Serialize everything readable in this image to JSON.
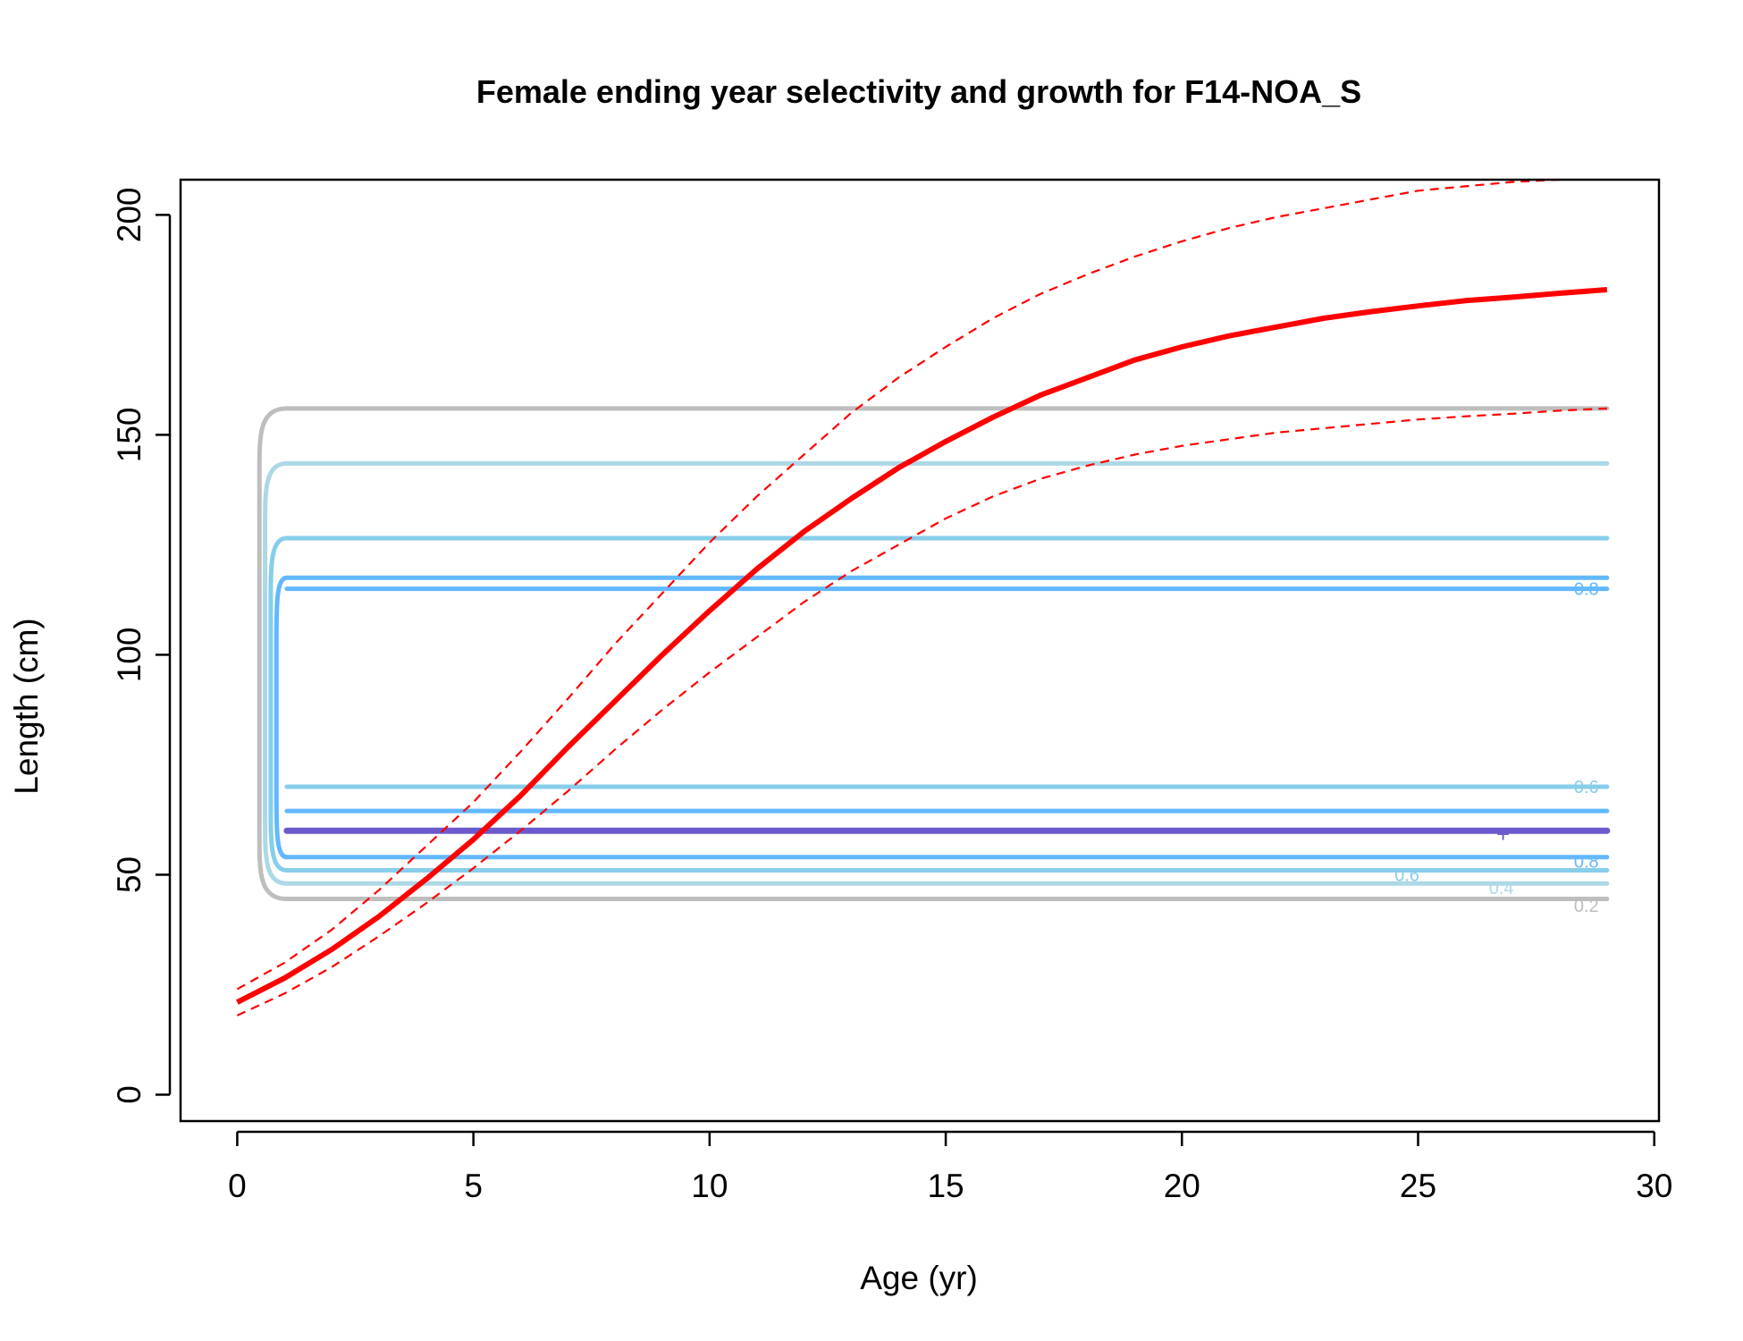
{
  "chart_data": {
    "type": "line",
    "title": "Female ending year selectivity and growth for F14-NOA_S",
    "xlabel": "Age (yr)",
    "ylabel": "Length (cm)",
    "xlim": [
      -1.2,
      30.1
    ],
    "ylim": [
      -6,
      208
    ],
    "x_ticks": [
      0,
      5,
      10,
      15,
      20,
      25,
      30
    ],
    "y_ticks": [
      0,
      50,
      100,
      150,
      200
    ],
    "grid": false,
    "growth_series": [
      {
        "name": "mean length",
        "style": "solid",
        "color": "#ff0000",
        "x": [
          0,
          1,
          2,
          3,
          4,
          5,
          6,
          7,
          8,
          9,
          10,
          11,
          12,
          13,
          14,
          15,
          16,
          17,
          18,
          19,
          20,
          21,
          22,
          23,
          24,
          25,
          26,
          27,
          28,
          29
        ],
        "y": [
          21,
          26.5,
          33,
          40.5,
          49,
          58,
          68,
          79,
          89.5,
          100,
          110,
          119.5,
          128,
          135.5,
          142.5,
          148.5,
          154,
          159,
          163,
          167,
          170,
          172.5,
          174.5,
          176.5,
          178,
          179.3,
          180.5,
          181.3,
          182.2,
          183
        ]
      },
      {
        "name": "upper interval",
        "style": "dashed",
        "color": "#ff0000",
        "x": [
          0,
          1,
          2,
          3,
          4,
          5,
          6,
          7,
          8,
          9,
          10,
          11,
          12,
          13,
          14,
          15,
          16,
          17,
          18,
          19,
          20,
          21,
          22,
          23,
          24,
          25,
          26,
          27,
          28
        ],
        "y": [
          24,
          30,
          37.5,
          46.5,
          56.5,
          66.5,
          78,
          90,
          102.5,
          114,
          125.5,
          136,
          145.5,
          155,
          163,
          170,
          176.5,
          182,
          186.5,
          190.5,
          194,
          197,
          199.5,
          201.5,
          203.5,
          205.5,
          206.5,
          207.5,
          208
        ]
      },
      {
        "name": "lower interval",
        "style": "dashed",
        "color": "#ff0000",
        "x": [
          0,
          1,
          2,
          3,
          4,
          5,
          6,
          7,
          8,
          9,
          10,
          11,
          12,
          13,
          14,
          15,
          16,
          17,
          18,
          19,
          20,
          21,
          22,
          23,
          24,
          25,
          26,
          27,
          28,
          29
        ],
        "y": [
          18,
          23,
          29,
          36,
          43.5,
          51.5,
          60,
          69,
          78.5,
          87.5,
          96,
          104,
          112,
          119,
          125,
          131,
          136,
          140,
          143,
          145.5,
          147.5,
          149,
          150.5,
          151.5,
          152.5,
          153.5,
          154.2,
          154.8,
          155.5,
          156
        ]
      }
    ],
    "contours": [
      {
        "level": "0.2",
        "color": "#bebebe",
        "label_y": 44,
        "y": [
          44.5,
          156
        ]
      },
      {
        "level": "0.4",
        "color": "#add8e6",
        "label_y": 47.5,
        "y": [
          48,
          143.5
        ]
      },
      {
        "level": "0.6",
        "color": "#87ceeb",
        "label_y": 51,
        "y": [
          51,
          126.5,
          70
        ]
      },
      {
        "level": "0.8",
        "color": "#63b8ff",
        "label_y": 54,
        "y": [
          54,
          64.5,
          117.5,
          115
        ]
      },
      {
        "level": "1",
        "color": "#6a5acd",
        "y": [
          60
        ]
      }
    ],
    "contour_labels": [
      {
        "text": "0.8",
        "x": 28.3,
        "y": 115,
        "color": "#63b8ff"
      },
      {
        "text": "0.6",
        "x": 28.3,
        "y": 70,
        "color": "#87ceeb"
      },
      {
        "text": "0.8",
        "x": 28.3,
        "y": 53,
        "color": "#63b8ff"
      },
      {
        "text": "0.6",
        "x": 24.5,
        "y": 50,
        "color": "#87ceeb"
      },
      {
        "text": "0.4",
        "x": 26.5,
        "y": 47,
        "color": "#add8e6"
      },
      {
        "text": "0.2",
        "x": 28.3,
        "y": 43,
        "color": "#bebebe"
      }
    ],
    "peak_marker": {
      "text": "+",
      "x": 26.8,
      "y": 59,
      "color": "#6a5acd"
    }
  }
}
